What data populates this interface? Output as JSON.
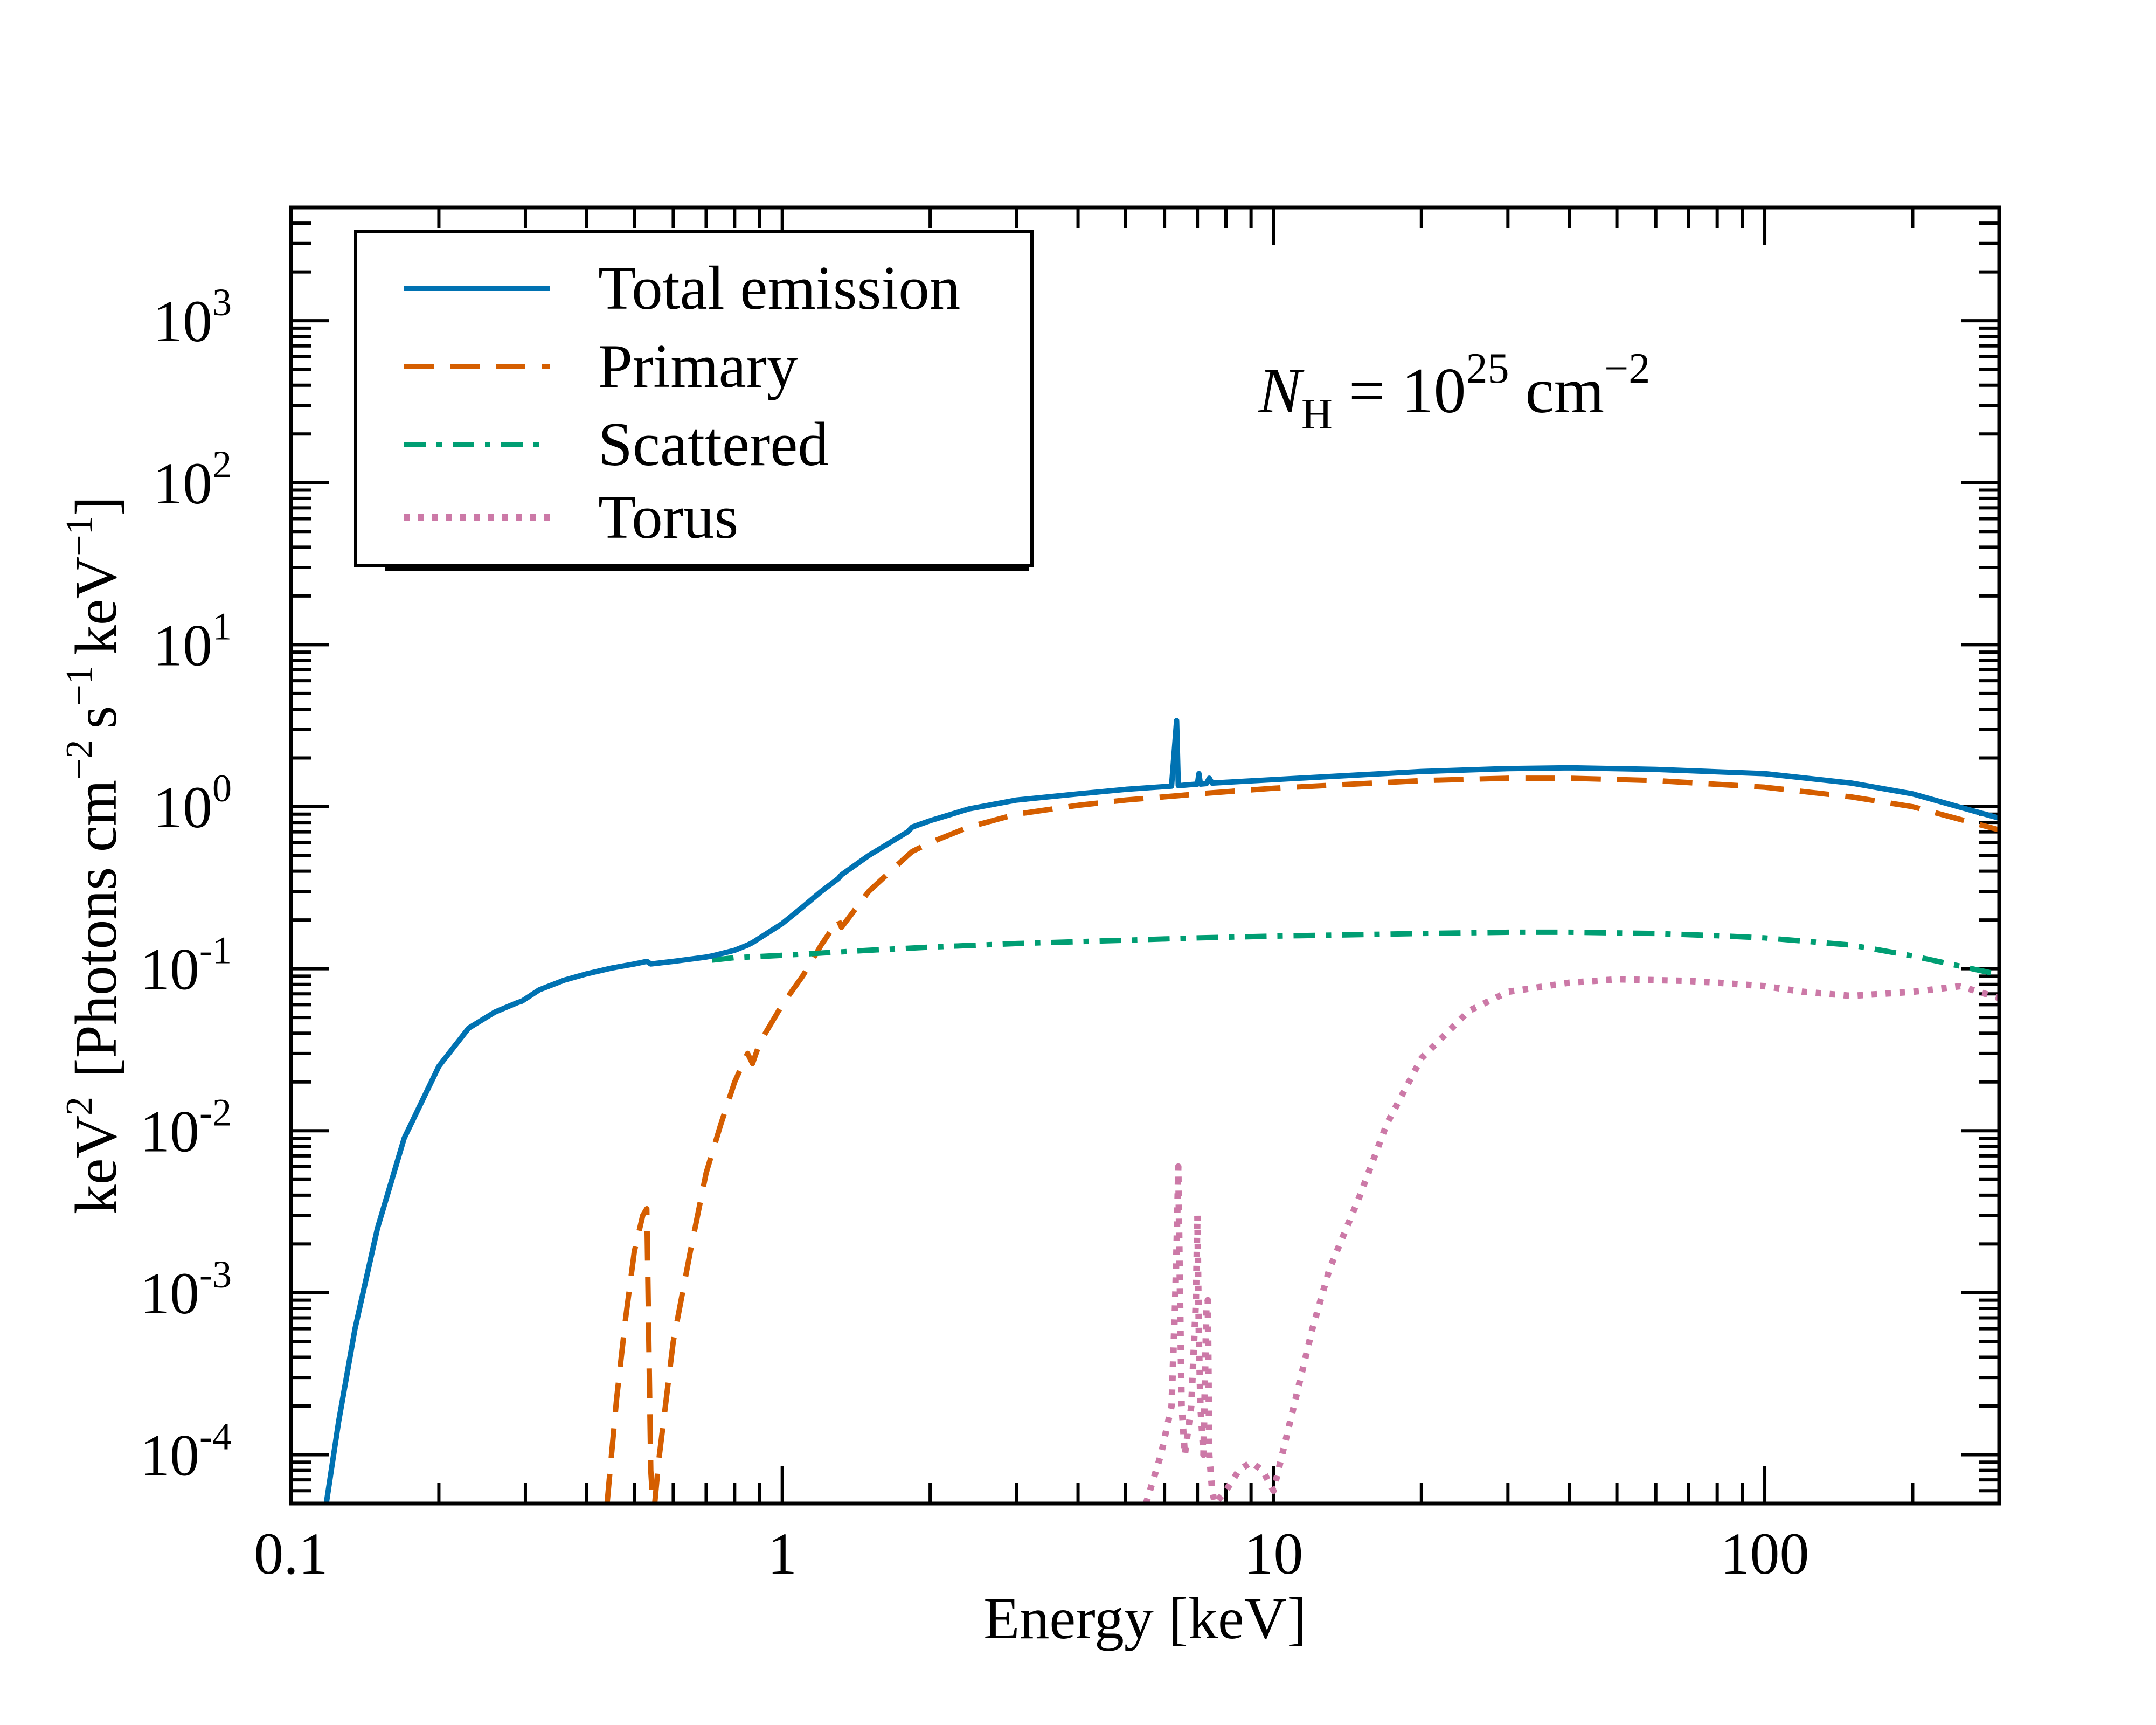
{
  "chart_data": {
    "type": "line",
    "title": "",
    "xlabel": "Energy  [keV]",
    "ylabel": {
      "base": "keV",
      "base_sup": "2",
      "units_open": "[Photons cm",
      "cm_sup": "−2",
      "s": "s",
      "s_sup": "−1",
      "kev": "keV",
      "kev_sup": "−1",
      "units_close": "]"
    },
    "x_scale": "log",
    "y_scale": "log",
    "xlim": [
      0.1,
      300
    ],
    "ylim": [
      5e-05,
      5000
    ],
    "x_ticks": [
      {
        "value": 0.1,
        "label": "0.1"
      },
      {
        "value": 1,
        "label": "1"
      },
      {
        "value": 10,
        "label": "10"
      },
      {
        "value": 100,
        "label": "100"
      }
    ],
    "y_ticks": [
      {
        "value": 0.0001,
        "base": "10",
        "exp": "-4"
      },
      {
        "value": 0.001,
        "base": "10",
        "exp": "-3"
      },
      {
        "value": 0.01,
        "base": "10",
        "exp": "-2"
      },
      {
        "value": 0.1,
        "base": "10",
        "exp": "-1"
      },
      {
        "value": 1,
        "base": "10",
        "exp": "0"
      },
      {
        "value": 10,
        "base": "10",
        "exp": "1"
      },
      {
        "value": 100,
        "base": "10",
        "exp": "2"
      },
      {
        "value": 1000,
        "base": "10",
        "exp": "3"
      }
    ],
    "annotation": {
      "symbol": "N",
      "subscript": "H",
      "equals": "= 10",
      "exponent": "25",
      "unit": "cm",
      "unit_exponent": "−2"
    },
    "legend_position": "top-left",
    "series": [
      {
        "name": "Total emission",
        "style": "solid",
        "color": "#0072b2",
        "x": [
          0.118,
          0.125,
          0.135,
          0.15,
          0.17,
          0.2,
          0.23,
          0.26,
          0.29,
          0.295,
          0.32,
          0.36,
          0.4,
          0.45,
          0.5,
          0.53,
          0.54,
          0.6,
          0.7,
          0.72,
          0.8,
          0.85,
          0.87,
          1.0,
          1.1,
          1.2,
          1.3,
          1.32,
          1.5,
          1.8,
          1.84,
          2.0,
          2.4,
          3.0,
          4.0,
          5.0,
          6.2,
          6.35,
          6.4,
          6.45,
          6.6,
          7.0,
          7.05,
          7.1,
          7.3,
          7.4,
          7.5,
          10,
          20,
          30,
          40,
          60,
          100,
          150,
          200,
          300
        ],
        "y": [
          5e-05,
          0.00016,
          0.0006,
          0.0025,
          0.009,
          0.025,
          0.043,
          0.054,
          0.062,
          0.063,
          0.074,
          0.085,
          0.093,
          0.101,
          0.107,
          0.111,
          0.107,
          0.111,
          0.118,
          0.12,
          0.13,
          0.14,
          0.145,
          0.19,
          0.24,
          0.3,
          0.36,
          0.38,
          0.5,
          0.7,
          0.75,
          0.82,
          0.97,
          1.1,
          1.2,
          1.28,
          1.34,
          3.4,
          1.35,
          1.35,
          1.36,
          1.38,
          1.6,
          1.38,
          1.39,
          1.5,
          1.4,
          1.47,
          1.65,
          1.72,
          1.74,
          1.7,
          1.6,
          1.4,
          1.2,
          0.85
        ]
      },
      {
        "name": "Primary",
        "style": "dashed",
        "color": "#d55e00",
        "x": [
          0.44,
          0.46,
          0.48,
          0.5,
          0.52,
          0.53,
          0.54,
          0.545,
          0.55,
          0.56,
          0.6,
          0.65,
          0.7,
          0.75,
          0.8,
          0.85,
          0.87,
          0.9,
          1.0,
          1.1,
          1.2,
          1.3,
          1.32,
          1.5,
          1.8,
          1.84,
          2.0,
          2.4,
          3.0,
          4.0,
          5.0,
          6.4,
          7.0,
          10,
          20,
          30,
          40,
          60,
          100,
          150,
          200,
          300
        ],
        "y": [
          5e-05,
          0.00022,
          0.0007,
          0.0018,
          0.003,
          0.0033,
          8e-05,
          5e-05,
          5e-05,
          9e-05,
          0.0005,
          0.0018,
          0.0055,
          0.011,
          0.02,
          0.03,
          0.026,
          0.035,
          0.06,
          0.09,
          0.14,
          0.2,
          0.18,
          0.3,
          0.5,
          0.53,
          0.6,
          0.75,
          0.9,
          1.02,
          1.1,
          1.17,
          1.2,
          1.3,
          1.45,
          1.5,
          1.5,
          1.45,
          1.32,
          1.15,
          1.0,
          0.72
        ]
      },
      {
        "name": "Scattered",
        "style": "dashdot",
        "color": "#009e73",
        "x": [
          0.72,
          0.8,
          0.9,
          1.0,
          1.5,
          2,
          3,
          5,
          7,
          10,
          20,
          30,
          40,
          60,
          80,
          100,
          150,
          200,
          300
        ],
        "y": [
          0.113,
          0.117,
          0.119,
          0.121,
          0.13,
          0.136,
          0.143,
          0.15,
          0.155,
          0.159,
          0.165,
          0.168,
          0.168,
          0.165,
          0.16,
          0.155,
          0.14,
          0.12,
          0.092
        ]
      },
      {
        "name": "Torus",
        "style": "dotted",
        "color": "#cc79a7",
        "x": [
          5.5,
          5.9,
          6.2,
          6.3,
          6.35,
          6.4,
          6.45,
          6.5,
          6.6,
          6.8,
          6.95,
          7.0,
          7.05,
          7.1,
          7.2,
          7.3,
          7.35,
          7.4,
          7.5,
          7.6,
          8.0,
          8.5,
          9.0,
          9.5,
          10,
          11,
          12,
          13,
          15,
          17,
          20,
          25,
          30,
          40,
          50,
          60,
          70,
          80,
          100,
          120,
          150,
          200,
          250,
          300
        ],
        "y": [
          5e-05,
          0.0001,
          0.0002,
          0.0008,
          0.002,
          0.006,
          0.001,
          0.0002,
          0.0001,
          0.0002,
          0.0009,
          0.003,
          0.0005,
          0.0002,
          0.0001,
          0.0008,
          0.0009,
          0.0001,
          6e-05,
          5e-05,
          6e-05,
          8e-05,
          9e-05,
          8e-05,
          6e-05,
          0.0002,
          0.0006,
          0.0014,
          0.004,
          0.011,
          0.028,
          0.055,
          0.072,
          0.082,
          0.086,
          0.085,
          0.084,
          0.082,
          0.078,
          0.072,
          0.068,
          0.072,
          0.078,
          0.066
        ]
      }
    ]
  }
}
